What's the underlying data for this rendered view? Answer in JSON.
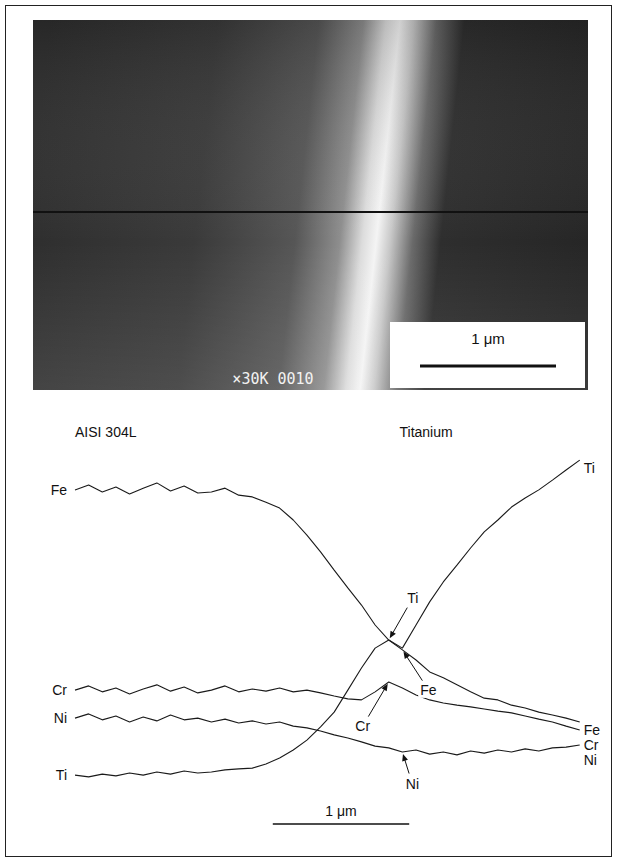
{
  "micrograph": {
    "label": "×30K 0010",
    "scale_bar": {
      "length": 1,
      "label": "1 μm"
    }
  },
  "chart_data": {
    "type": "line",
    "materials": {
      "left": "AISI 304L",
      "right": "Titanium"
    },
    "x": [
      0,
      0.1,
      0.2,
      0.3,
      0.4,
      0.5,
      0.6,
      0.7,
      0.8,
      0.9,
      1.0,
      1.1,
      1.2,
      1.3,
      1.4,
      1.5,
      1.6,
      1.7,
      1.8,
      1.9,
      2.0,
      2.1,
      2.2,
      2.3,
      2.4,
      2.5,
      2.6,
      2.7,
      2.8,
      2.9,
      3.0,
      3.1,
      3.2,
      3.3,
      3.4,
      3.5,
      3.6,
      3.7
    ],
    "xlim": [
      0,
      3.9
    ],
    "ylim": [
      0,
      100
    ],
    "tick_labels": false,
    "grid": false,
    "series": [
      {
        "name": "Fe",
        "color": "#1a1a1a",
        "values": [
          88.6,
          90.0,
          88.0,
          89.4,
          87.4,
          89.1,
          90.6,
          88.3,
          89.7,
          87.7,
          88.0,
          89.1,
          87.1,
          86.6,
          85.1,
          83.4,
          80.0,
          75.7,
          70.9,
          65.7,
          60.6,
          55.7,
          50.0,
          45.7,
          42.9,
          40.0,
          36.6,
          34.9,
          32.9,
          30.9,
          29.1,
          28.6,
          27.1,
          26.3,
          25.1,
          24.3,
          23.4,
          22.3
        ]
      },
      {
        "name": "Cr",
        "color": "#1a1a1a",
        "values": [
          31.4,
          32.6,
          30.9,
          32.0,
          30.3,
          31.7,
          32.9,
          31.1,
          32.3,
          30.6,
          31.4,
          32.6,
          30.9,
          31.7,
          31.1,
          32.0,
          30.9,
          31.4,
          30.6,
          29.7,
          28.9,
          28.6,
          30.9,
          33.7,
          32.0,
          30.0,
          28.6,
          27.7,
          27.1,
          26.6,
          26.0,
          25.4,
          24.9,
          24.0,
          23.1,
          22.3,
          21.1,
          20.0
        ]
      },
      {
        "name": "Ni",
        "color": "#1a1a1a",
        "values": [
          23.4,
          24.6,
          22.9,
          24.0,
          22.3,
          23.7,
          22.6,
          24.3,
          22.9,
          23.4,
          22.3,
          23.1,
          22.0,
          22.6,
          21.7,
          22.3,
          21.1,
          20.6,
          19.7,
          18.6,
          17.7,
          16.6,
          15.4,
          14.9,
          13.7,
          14.3,
          13.1,
          13.7,
          12.9,
          14.0,
          13.4,
          14.3,
          13.7,
          14.6,
          14.0,
          14.9,
          15.1,
          15.7
        ]
      },
      {
        "name": "Ti",
        "color": "#1a1a1a",
        "values": [
          7.1,
          6.6,
          7.4,
          6.9,
          7.7,
          7.1,
          8.0,
          7.4,
          8.3,
          7.7,
          8.0,
          8.6,
          8.9,
          9.1,
          10.3,
          12.0,
          14.3,
          17.1,
          20.9,
          25.1,
          31.4,
          37.7,
          43.4,
          45.7,
          43.4,
          50.0,
          56.6,
          62.3,
          67.1,
          72.0,
          76.6,
          80.0,
          83.7,
          86.3,
          88.6,
          91.4,
          94.3,
          97.1
        ]
      }
    ],
    "annotations": [
      {
        "text": "Ti",
        "x": 2.3,
        "y": 45.7
      },
      {
        "text": "Fe",
        "x": 2.4,
        "y": 42.9
      },
      {
        "text": "Cr",
        "x": 2.3,
        "y": 33.7
      },
      {
        "text": "Ni",
        "x": 2.4,
        "y": 13.7
      }
    ],
    "scale_bar": {
      "length": 1,
      "label": "1 μm"
    }
  }
}
